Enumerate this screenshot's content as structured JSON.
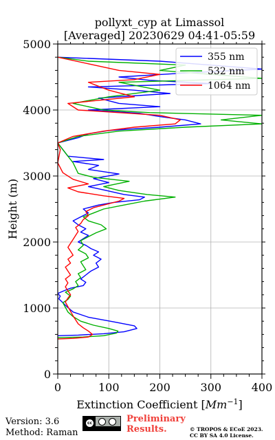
{
  "chart_data": {
    "type": "line",
    "title": "pollyxt_cyp at Limassol",
    "subtitle": "[Averaged] 20230629 04:41-05:59",
    "xlabel_main": "Extinction Coefficient [",
    "xlabel_unit": "Mm",
    "xlabel_exp": "−1",
    "xlabel_close": "]",
    "ylabel": "Height (m)",
    "xlim": [
      0,
      400
    ],
    "ylim": [
      0,
      5000
    ],
    "xticks": [
      0,
      100,
      200,
      300,
      400
    ],
    "yticks": [
      0,
      1000,
      2000,
      3000,
      4000,
      5000
    ],
    "grid": true,
    "legend_position": "top-right",
    "series": [
      {
        "name": "355 nm",
        "color": "#0000ff",
        "points": [
          [
            0,
            580
          ],
          [
            40,
            590
          ],
          [
            90,
            610
          ],
          [
            130,
            640
          ],
          [
            155,
            690
          ],
          [
            150,
            730
          ],
          [
            110,
            790
          ],
          [
            60,
            860
          ],
          [
            30,
            940
          ],
          [
            18,
            1020
          ],
          [
            10,
            1080
          ],
          [
            2,
            1140
          ],
          [
            5,
            1180
          ],
          [
            0,
            1220
          ],
          [
            12,
            1260
          ],
          [
            25,
            1300
          ],
          [
            50,
            1340
          ],
          [
            55,
            1390
          ],
          [
            45,
            1440
          ],
          [
            55,
            1500
          ],
          [
            65,
            1560
          ],
          [
            80,
            1620
          ],
          [
            75,
            1680
          ],
          [
            85,
            1740
          ],
          [
            70,
            1800
          ],
          [
            80,
            1850
          ],
          [
            65,
            1900
          ],
          [
            55,
            1950
          ],
          [
            40,
            2000
          ],
          [
            50,
            2050
          ],
          [
            60,
            2100
          ],
          [
            45,
            2150
          ],
          [
            55,
            2200
          ],
          [
            40,
            2260
          ],
          [
            30,
            2320
          ],
          [
            45,
            2380
          ],
          [
            60,
            2440
          ],
          [
            50,
            2500
          ],
          [
            80,
            2560
          ],
          [
            110,
            2600
          ],
          [
            160,
            2640
          ],
          [
            170,
            2680
          ],
          [
            130,
            2720
          ],
          [
            95,
            2780
          ],
          [
            60,
            2840
          ],
          [
            100,
            2900
          ],
          [
            70,
            2960
          ],
          [
            120,
            3030
          ],
          [
            60,
            3100
          ],
          [
            80,
            3160
          ],
          [
            30,
            3220
          ],
          [
            90,
            3250
          ],
          [
            20,
            3300
          ],
          [
            10,
            3400
          ],
          [
            0,
            3500
          ],
          [
            40,
            3580
          ],
          [
            60,
            3640
          ],
          [
            100,
            3690
          ],
          [
            200,
            3740
          ],
          [
            280,
            3790
          ],
          [
            250,
            3850
          ],
          [
            200,
            3900
          ],
          [
            160,
            3950
          ],
          [
            60,
            4000
          ],
          [
            200,
            4050
          ],
          [
            120,
            4100
          ],
          [
            80,
            4180
          ],
          [
            220,
            4250
          ],
          [
            150,
            4300
          ],
          [
            60,
            4350
          ],
          [
            300,
            4400
          ],
          [
            180,
            4450
          ],
          [
            120,
            4500
          ],
          [
            250,
            4560
          ],
          [
            400,
            4620
          ],
          [
            300,
            4680
          ],
          [
            200,
            4740
          ],
          [
            0,
            4800
          ]
        ]
      },
      {
        "name": "532 nm",
        "color": "#00b000",
        "points": [
          [
            0,
            550
          ],
          [
            50,
            560
          ],
          [
            90,
            580
          ],
          [
            115,
            620
          ],
          [
            118,
            650
          ],
          [
            100,
            690
          ],
          [
            70,
            740
          ],
          [
            45,
            800
          ],
          [
            30,
            870
          ],
          [
            20,
            940
          ],
          [
            15,
            1010
          ],
          [
            10,
            1080
          ],
          [
            20,
            1130
          ],
          [
            25,
            1180
          ],
          [
            15,
            1240
          ],
          [
            30,
            1290
          ],
          [
            40,
            1340
          ],
          [
            35,
            1400
          ],
          [
            45,
            1460
          ],
          [
            40,
            1520
          ],
          [
            55,
            1580
          ],
          [
            50,
            1640
          ],
          [
            45,
            1700
          ],
          [
            60,
            1760
          ],
          [
            55,
            1820
          ],
          [
            40,
            1880
          ],
          [
            50,
            1950
          ],
          [
            45,
            2020
          ],
          [
            60,
            2080
          ],
          [
            75,
            2140
          ],
          [
            95,
            2200
          ],
          [
            85,
            2260
          ],
          [
            60,
            2320
          ],
          [
            50,
            2380
          ],
          [
            70,
            2440
          ],
          [
            90,
            2500
          ],
          [
            130,
            2560
          ],
          [
            170,
            2620
          ],
          [
            230,
            2680
          ],
          [
            175,
            2720
          ],
          [
            120,
            2780
          ],
          [
            90,
            2840
          ],
          [
            140,
            2920
          ],
          [
            70,
            2980
          ],
          [
            40,
            3040
          ],
          [
            30,
            3200
          ],
          [
            10,
            3400
          ],
          [
            0,
            3500
          ],
          [
            40,
            3600
          ],
          [
            120,
            3680
          ],
          [
            250,
            3740
          ],
          [
            400,
            3790
          ],
          [
            320,
            3850
          ],
          [
            400,
            3920
          ],
          [
            180,
            3960
          ],
          [
            90,
            4000
          ],
          [
            30,
            4100
          ],
          [
            100,
            4200
          ],
          [
            200,
            4300
          ],
          [
            120,
            4420
          ],
          [
            400,
            4480
          ],
          [
            300,
            4540
          ],
          [
            200,
            4600
          ],
          [
            250,
            4680
          ],
          [
            60,
            4740
          ],
          [
            0,
            4800
          ]
        ]
      },
      {
        "name": "1064 nm",
        "color": "#ff0000",
        "points": [
          [
            0,
            530
          ],
          [
            30,
            540
          ],
          [
            60,
            560
          ],
          [
            68,
            600
          ],
          [
            60,
            650
          ],
          [
            50,
            700
          ],
          [
            40,
            760
          ],
          [
            35,
            820
          ],
          [
            30,
            880
          ],
          [
            25,
            950
          ],
          [
            20,
            1020
          ],
          [
            15,
            1090
          ],
          [
            20,
            1150
          ],
          [
            25,
            1200
          ],
          [
            20,
            1260
          ],
          [
            15,
            1320
          ],
          [
            20,
            1380
          ],
          [
            15,
            1440
          ],
          [
            25,
            1500
          ],
          [
            20,
            1560
          ],
          [
            15,
            1620
          ],
          [
            25,
            1680
          ],
          [
            20,
            1740
          ],
          [
            30,
            1800
          ],
          [
            25,
            1860
          ],
          [
            20,
            1920
          ],
          [
            25,
            1980
          ],
          [
            30,
            2040
          ],
          [
            35,
            2100
          ],
          [
            40,
            2160
          ],
          [
            35,
            2220
          ],
          [
            45,
            2280
          ],
          [
            50,
            2340
          ],
          [
            60,
            2400
          ],
          [
            55,
            2460
          ],
          [
            70,
            2520
          ],
          [
            100,
            2580
          ],
          [
            120,
            2620
          ],
          [
            130,
            2660
          ],
          [
            90,
            2700
          ],
          [
            40,
            2760
          ],
          [
            20,
            2820
          ],
          [
            60,
            2880
          ],
          [
            30,
            2950
          ],
          [
            10,
            3050
          ],
          [
            0,
            3200
          ],
          [
            5,
            3400
          ],
          [
            0,
            3500
          ],
          [
            30,
            3600
          ],
          [
            90,
            3680
          ],
          [
            150,
            3740
          ],
          [
            230,
            3790
          ],
          [
            240,
            3850
          ],
          [
            200,
            3920
          ],
          [
            120,
            3960
          ],
          [
            40,
            4000
          ],
          [
            20,
            4100
          ],
          [
            150,
            4200
          ],
          [
            100,
            4300
          ],
          [
            60,
            4420
          ],
          [
            150,
            4460
          ],
          [
            200,
            4540
          ],
          [
            120,
            4600
          ],
          [
            60,
            4700
          ],
          [
            0,
            4800
          ]
        ]
      }
    ]
  },
  "footer": {
    "version": "Version: 3.6",
    "method": "Method: Raman",
    "preliminary_line1": "Preliminary",
    "preliminary_line2": "Results.",
    "copyright_line1": "© TROPOS & ECoE 2023.",
    "copyright_line2": "CC BY SA 4.0 License.",
    "cc_badge_text": "cc"
  }
}
